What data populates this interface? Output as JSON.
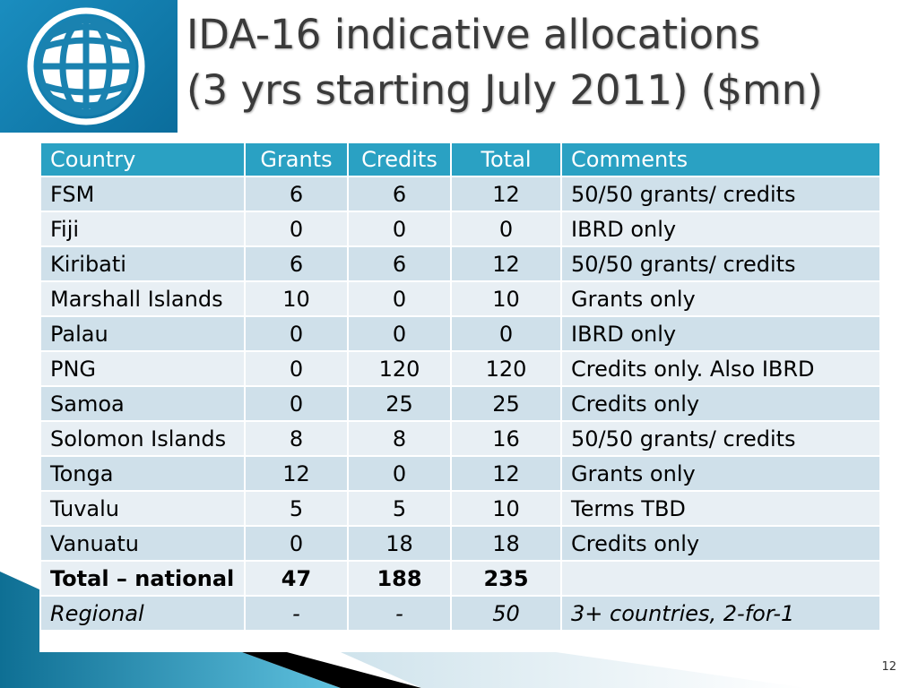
{
  "title_line1": "IDA-16 indicative allocations",
  "title_line2": "(3 yrs starting July 2011) ($mn)",
  "headers": [
    "Country",
    "Grants",
    "Credits",
    "Total",
    "Comments"
  ],
  "rows": [
    [
      "FSM",
      "6",
      "6",
      "12",
      "50/50 grants/ credits"
    ],
    [
      "Fiji",
      "0",
      "0",
      "0",
      "IBRD only"
    ],
    [
      "Kiribati",
      "6",
      "6",
      "12",
      "50/50 grants/ credits"
    ],
    [
      "Marshall Islands",
      "10",
      "0",
      "10",
      "Grants only"
    ],
    [
      "Palau",
      "0",
      "0",
      "0",
      "IBRD only"
    ],
    [
      "PNG",
      "0",
      "120",
      "120",
      "Credits only. Also IBRD"
    ],
    [
      "Samoa",
      "0",
      "25",
      "25",
      "Credits only"
    ],
    [
      "Solomon Islands",
      "8",
      "8",
      "16",
      "50/50 grants/ credits"
    ],
    [
      "Tonga",
      "12",
      "0",
      "12",
      "Grants only"
    ],
    [
      "Tuvalu",
      "5",
      "5",
      "10",
      "Terms TBD"
    ],
    [
      "Vanuatu",
      "0",
      "18",
      "18",
      "Credits only"
    ],
    [
      "Total – national",
      "47",
      "188",
      "235",
      ""
    ],
    [
      "Regional",
      "-",
      "-",
      "50",
      "3+ countries, 2-for-1"
    ]
  ],
  "page_number": "12"
}
